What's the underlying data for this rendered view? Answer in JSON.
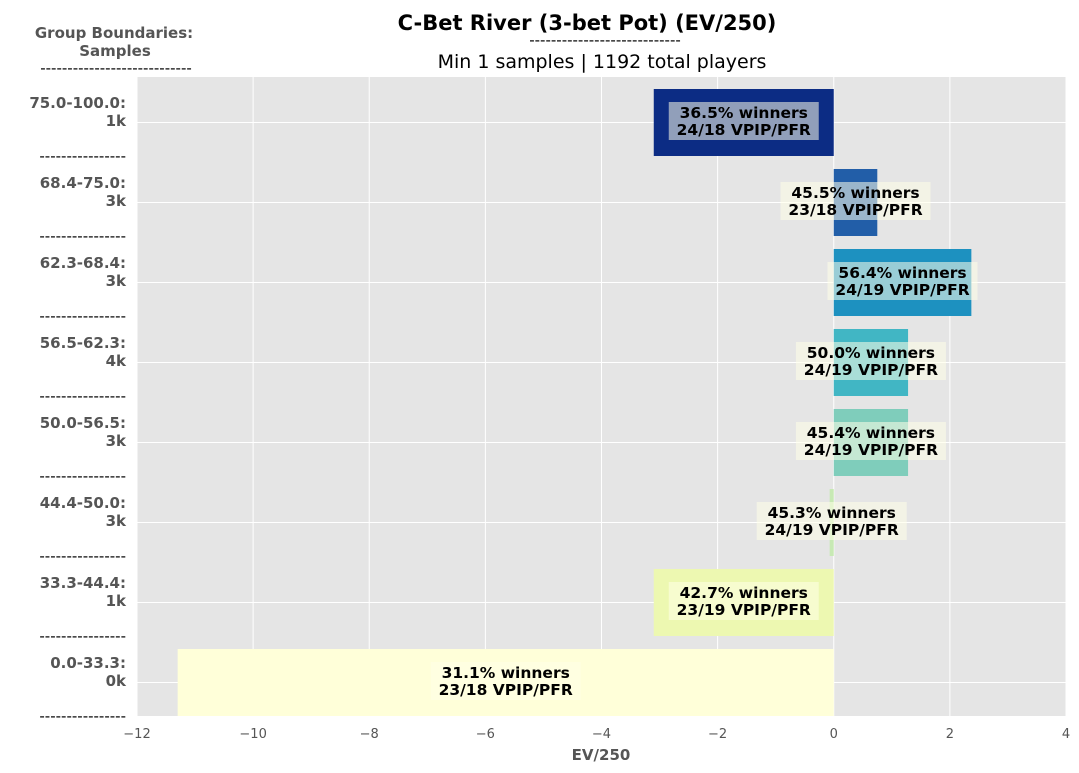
{
  "chart_data": {
    "type": "bar",
    "orientation": "horizontal",
    "title": "C-Bet River (3-bet Pot) (EV/250)",
    "title_rule": "----------------------------",
    "subtitle": "Min 1 samples | 1192 total players",
    "group_header": [
      "Group Boundaries:",
      "Samples",
      "----------------------------"
    ],
    "separator": "----------------",
    "xlabel": "EV/250",
    "xlim": [
      -12,
      4
    ],
    "xticks": [
      -12,
      -10,
      -8,
      -6,
      -4,
      -2,
      0,
      2,
      4
    ],
    "xtick_labels": [
      "−12",
      "−10",
      "−8",
      "−6",
      "−4",
      "−2",
      "0",
      "2",
      "4"
    ],
    "grid": true,
    "groups": [
      {
        "range": "75.0-100.0:",
        "samples": "1k",
        "value": -3.1,
        "color": "#0c2c84",
        "label1": "36.5% winners",
        "label2": "24/18 VPIP/PFR"
      },
      {
        "range": "68.4-75.0:",
        "samples": "3k",
        "value": 0.75,
        "color": "#225ea8",
        "label1": "45.5% winners",
        "label2": "23/18 VPIP/PFR"
      },
      {
        "range": "62.3-68.4:",
        "samples": "3k",
        "value": 2.37,
        "color": "#1d91c0",
        "label1": "56.4% winners",
        "label2": "24/19 VPIP/PFR"
      },
      {
        "range": "56.5-62.3:",
        "samples": "4k",
        "value": 1.28,
        "color": "#41b6c4",
        "label1": "50.0% winners",
        "label2": "24/19 VPIP/PFR"
      },
      {
        "range": "50.0-56.5:",
        "samples": "3k",
        "value": 1.28,
        "color": "#7fcdbb",
        "label1": "45.4% winners",
        "label2": "24/19 VPIP/PFR"
      },
      {
        "range": "44.4-50.0:",
        "samples": "3k",
        "value": -0.07,
        "color": "#c7e9b4",
        "label1": "45.3% winners",
        "label2": "24/19 VPIP/PFR"
      },
      {
        "range": "33.3-44.4:",
        "samples": "1k",
        "value": -3.1,
        "color": "#edf8b1",
        "label1": "42.7% winners",
        "label2": "23/19 VPIP/PFR"
      },
      {
        "range": "0.0-33.3:",
        "samples": "0k",
        "value": -11.3,
        "color": "#ffffd9",
        "label1": "31.1% winners",
        "label2": "23/18 VPIP/PFR"
      }
    ]
  }
}
